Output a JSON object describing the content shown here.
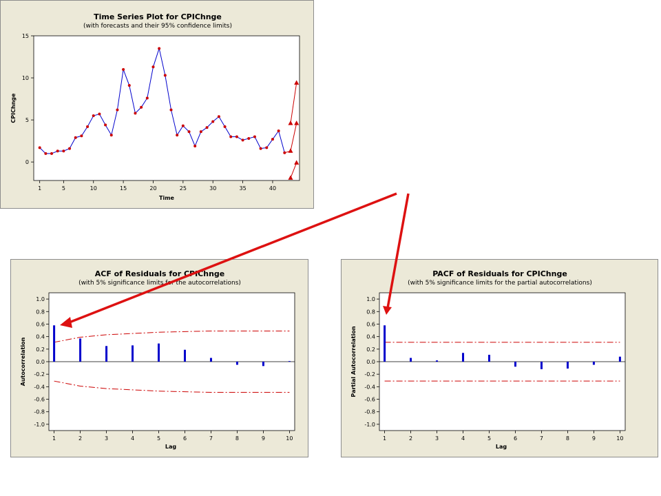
{
  "chart_data": [
    {
      "type": "line",
      "title": "Time Series Plot for CPIChnge",
      "subtitle": "(with forecasts and their 95% confidence limits)",
      "xlabel": "Time",
      "ylabel": "CPIChnge",
      "xlim": [
        0,
        44.5
      ],
      "ylim": [
        -2.2,
        15
      ],
      "xticks": [
        1,
        5,
        10,
        15,
        20,
        25,
        30,
        35,
        40
      ],
      "yticks": [
        0,
        5,
        10,
        15
      ],
      "series": [
        {
          "role": "observed",
          "x": [
            1,
            2,
            3,
            4,
            5,
            6,
            7,
            8,
            9,
            10,
            11,
            12,
            13,
            14,
            15,
            16,
            17,
            18,
            19,
            20,
            21,
            22,
            23,
            24,
            25,
            26,
            27,
            28,
            29,
            30,
            31,
            32,
            33,
            34,
            35,
            36,
            37,
            38,
            39,
            40,
            41,
            42
          ],
          "values": [
            1.7,
            1.0,
            1.0,
            1.3,
            1.3,
            1.6,
            2.9,
            3.1,
            4.2,
            5.5,
            5.7,
            4.4,
            3.2,
            6.2,
            11.0,
            9.1,
            5.8,
            6.5,
            7.6,
            11.3,
            13.5,
            10.3,
            6.2,
            3.2,
            4.3,
            3.6,
            1.9,
            3.6,
            4.1,
            4.8,
            5.4,
            4.2,
            3.0,
            3.0,
            2.6,
            2.8,
            3.0,
            1.6,
            1.7,
            2.7,
            3.7,
            1.1
          ]
        },
        {
          "role": "forecast",
          "x": [
            43,
            44
          ],
          "values": [
            1.3,
            4.6
          ]
        },
        {
          "role": "upper-limit",
          "x": [
            43,
            44
          ],
          "values": [
            4.6,
            9.4
          ]
        },
        {
          "role": "lower-limit",
          "x": [
            43,
            44
          ],
          "values": [
            -1.9,
            -0.1
          ]
        }
      ],
      "colors": {
        "line": "#0000cc",
        "marker": "#cc0000"
      }
    },
    {
      "type": "bar",
      "title": "ACF of Residuals for CPIChnge",
      "subtitle": "(with 5% significance limits for the autocorrelations)",
      "xlabel": "Lag",
      "ylabel": "Autocorrelation",
      "categories": [
        1,
        2,
        3,
        4,
        5,
        6,
        7,
        8,
        9,
        10
      ],
      "values": [
        0.58,
        0.37,
        0.25,
        0.26,
        0.29,
        0.19,
        0.06,
        -0.05,
        -0.07,
        0.01
      ],
      "upper_limit": [
        0.31,
        0.39,
        0.43,
        0.45,
        0.47,
        0.48,
        0.49,
        0.49,
        0.49,
        0.49
      ],
      "lower_limit": [
        -0.31,
        -0.39,
        -0.43,
        -0.45,
        -0.47,
        -0.48,
        -0.49,
        -0.49,
        -0.49,
        -0.49
      ],
      "ylim": [
        -1.1,
        1.1
      ],
      "yticks": [
        "1.0",
        "0.8",
        "0.6",
        "0.4",
        "0.2",
        "0.0",
        "-0.2",
        "-0.4",
        "-0.6",
        "-0.8",
        "-1.0"
      ],
      "colors": {
        "bar": "#0000cc",
        "limit": "#cc0000"
      }
    },
    {
      "type": "bar",
      "title": "PACF of Residuals for CPIChnge",
      "subtitle": "(with 5% significance limits for the partial autocorrelations)",
      "xlabel": "Lag",
      "ylabel": "Partial Autocorrelation",
      "categories": [
        1,
        2,
        3,
        4,
        5,
        6,
        7,
        8,
        9,
        10
      ],
      "values": [
        0.58,
        0.06,
        0.02,
        0.14,
        0.11,
        -0.08,
        -0.12,
        -0.11,
        -0.05,
        0.08
      ],
      "upper_limit": [
        0.31,
        0.31,
        0.31,
        0.31,
        0.31,
        0.31,
        0.31,
        0.31,
        0.31,
        0.31
      ],
      "lower_limit": [
        -0.31,
        -0.31,
        -0.31,
        -0.31,
        -0.31,
        -0.31,
        -0.31,
        -0.31,
        -0.31,
        -0.31
      ],
      "ylim": [
        -1.1,
        1.1
      ],
      "yticks": [
        "1.0",
        "0.8",
        "0.6",
        "0.4",
        "0.2",
        "0.0",
        "-0.2",
        "-0.4",
        "-0.6",
        "-0.8",
        "-1.0"
      ],
      "colors": {
        "bar": "#0000cc",
        "limit": "#cc0000"
      }
    }
  ],
  "annotations": {
    "arrow_color": "#dd1111"
  }
}
